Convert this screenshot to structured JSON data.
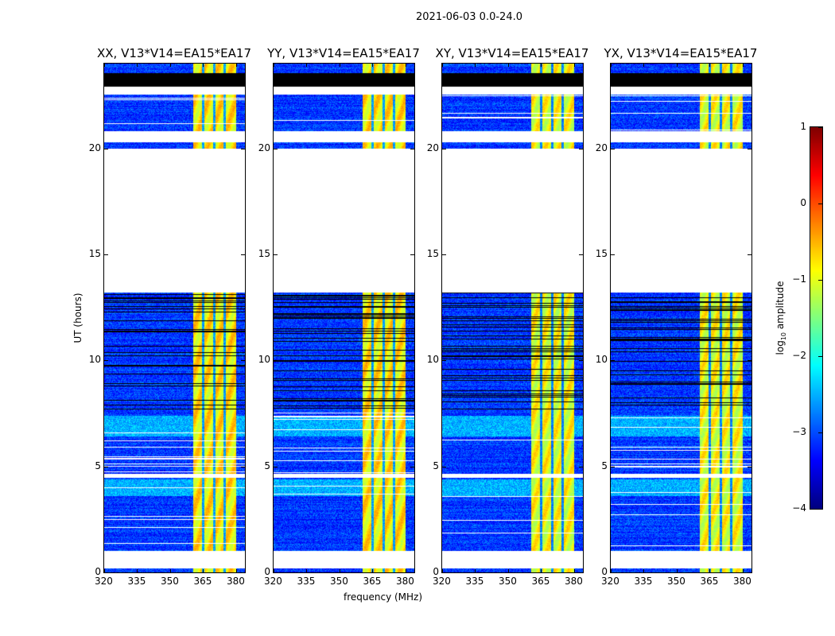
{
  "chart_data": {
    "type": "heatmap",
    "title": "2021-06-03 0.0-24.0",
    "xlabel": "frequency (MHz)",
    "ylabel": "UT (hours)",
    "xlim": [
      320,
      384
    ],
    "ylim": [
      0,
      24
    ],
    "xticks": [
      320,
      335,
      350,
      365,
      380
    ],
    "yticks": [
      0,
      5,
      10,
      15,
      20
    ],
    "panels": [
      {
        "title": "XX, V13*V14=EA15*EA17",
        "id": "xx"
      },
      {
        "title": "YY, V13*V14=EA15*EA17",
        "id": "yy"
      },
      {
        "title": "XY, V13*V14=EA15*EA17",
        "id": "xy"
      },
      {
        "title": "YX, V13*V14=EA15*EA17",
        "id": "yx"
      }
    ],
    "colorbar": {
      "label_main": "log",
      "label_sub": "10",
      "label_rest": " amplitude",
      "range": [
        -4,
        1
      ],
      "ticks": [
        1,
        0,
        -1,
        -2,
        -3,
        -4
      ],
      "tick_labels": [
        "1",
        "0",
        "−1",
        "−2",
        "−3",
        "−4"
      ],
      "colormap": "jet"
    },
    "baseline_log_amplitude": -3.1,
    "strong_band": {
      "freq_range_mhz": [
        360.4,
        380
      ],
      "channel_gaps_mhz": [
        365,
        370.2,
        374.7
      ],
      "log_amplitude": -0.8
    },
    "flagged_white_hours": [
      [
        0.2,
        1.0
      ],
      [
        4.45,
        4.65
      ],
      [
        13.2,
        20.0
      ],
      [
        20.3,
        20.8
      ],
      [
        22.55,
        22.9
      ]
    ],
    "flagged_black_hours": [
      [
        22.9,
        23.55
      ]
    ],
    "noisy_black_line_hours": [
      7.7,
      13.2
    ]
  }
}
